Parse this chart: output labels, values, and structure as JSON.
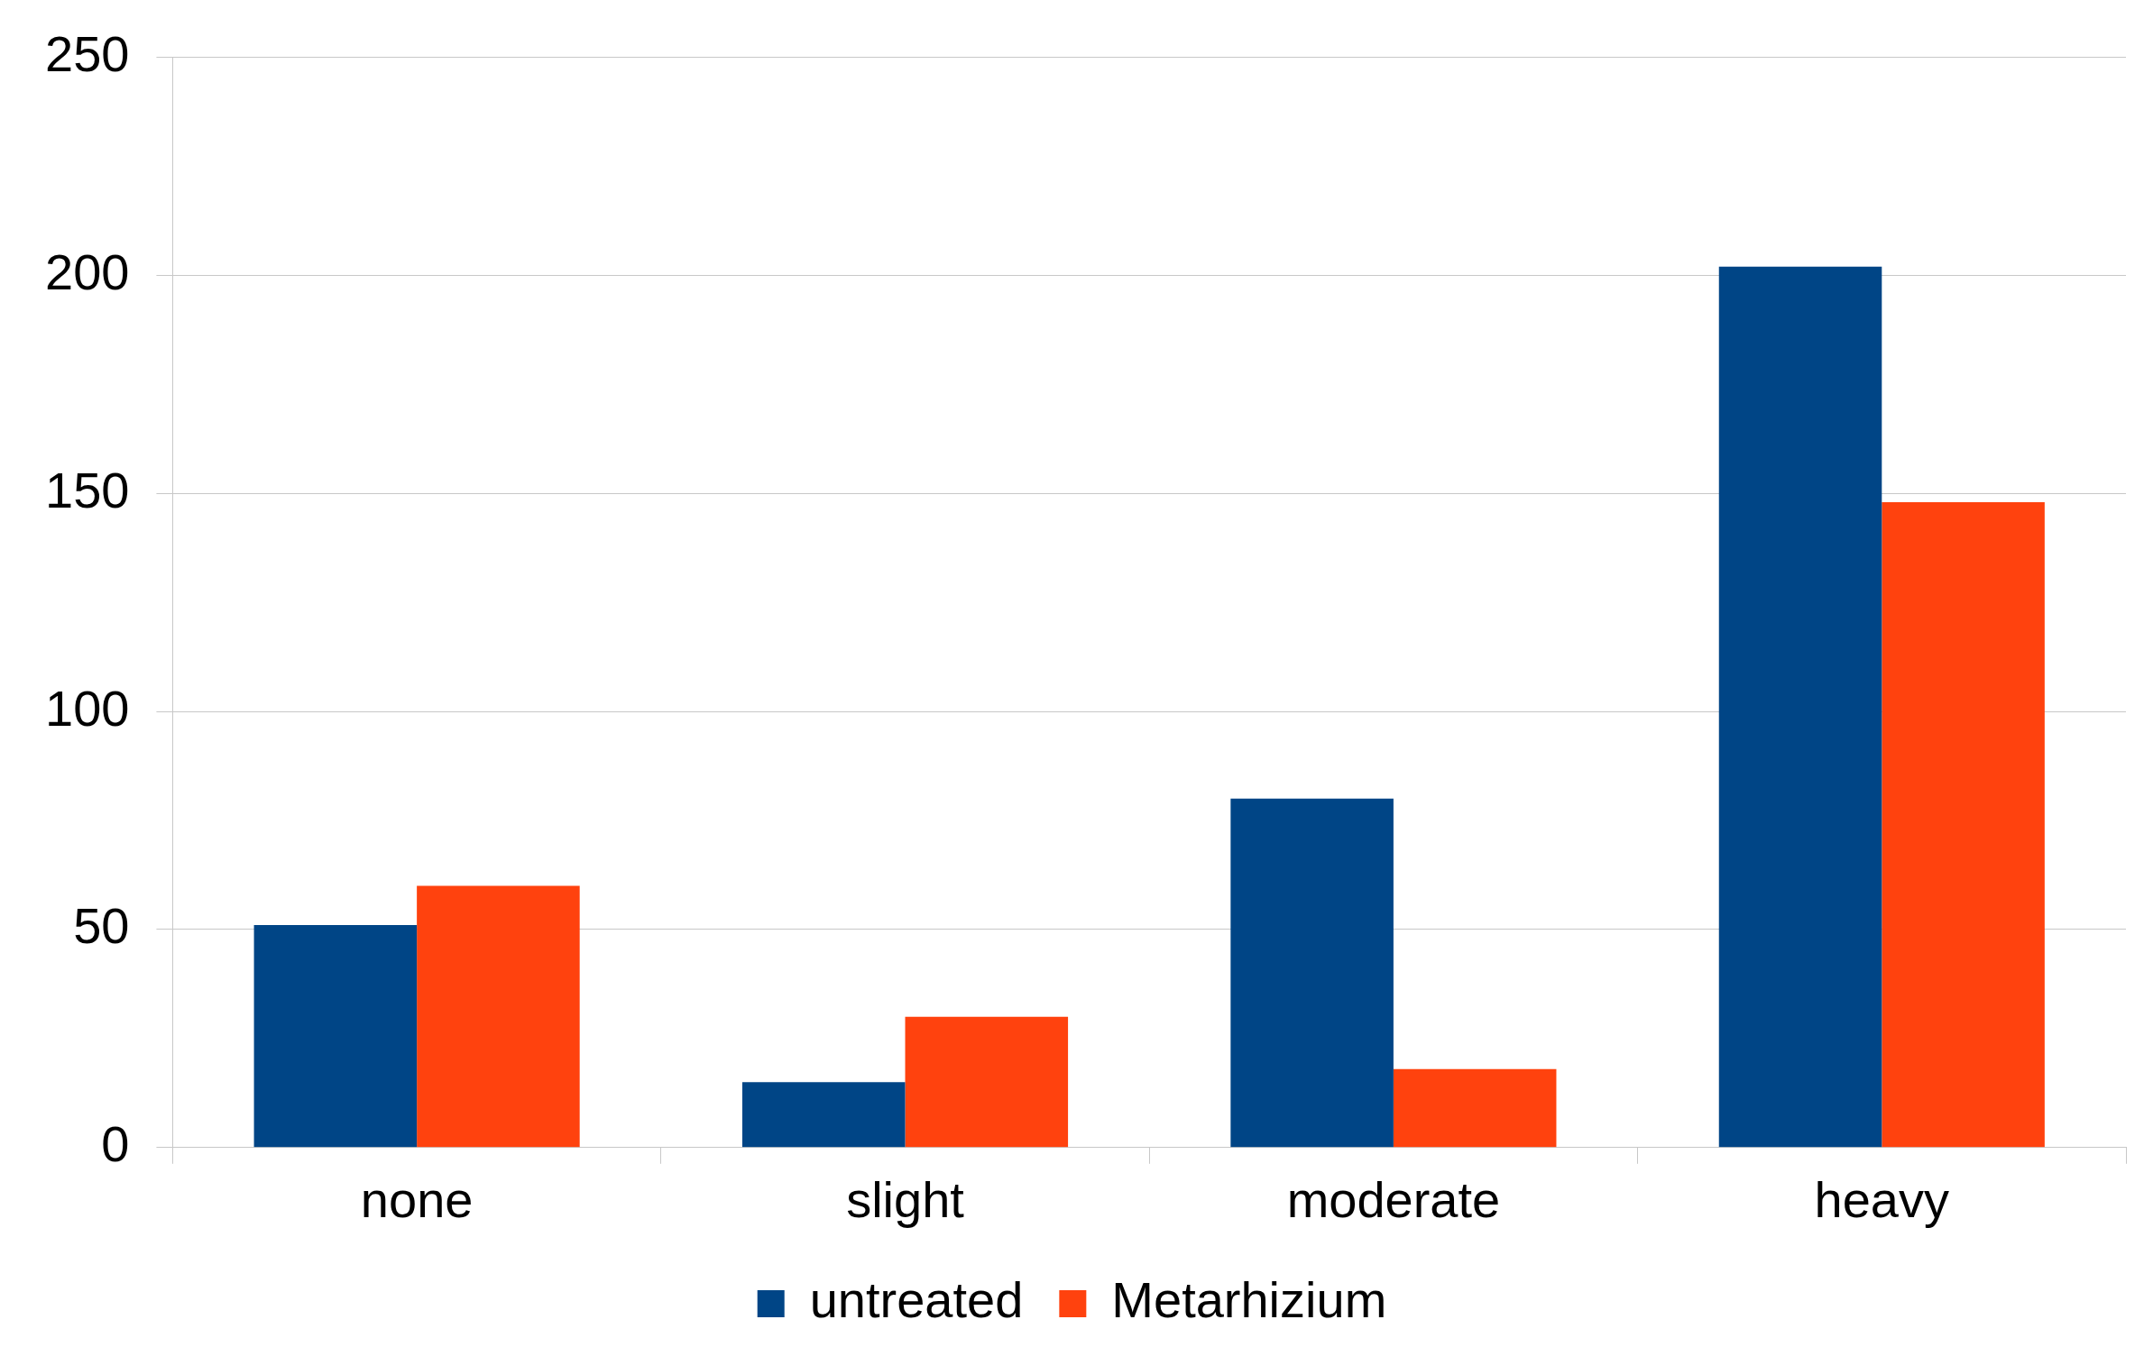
{
  "chart_data": {
    "type": "bar",
    "categories": [
      "none",
      "slight",
      "moderate",
      "heavy"
    ],
    "series": [
      {
        "name": "untreated",
        "color": "#004586",
        "values": [
          51,
          15,
          80,
          202
        ]
      },
      {
        "name": "Metarhizium",
        "color": "#ff420e",
        "values": [
          60,
          30,
          18,
          148
        ]
      }
    ],
    "ylim": [
      0,
      250
    ],
    "yticks": [
      0,
      50,
      100,
      150,
      200,
      250
    ],
    "grid": "y",
    "legend": "bottom"
  }
}
